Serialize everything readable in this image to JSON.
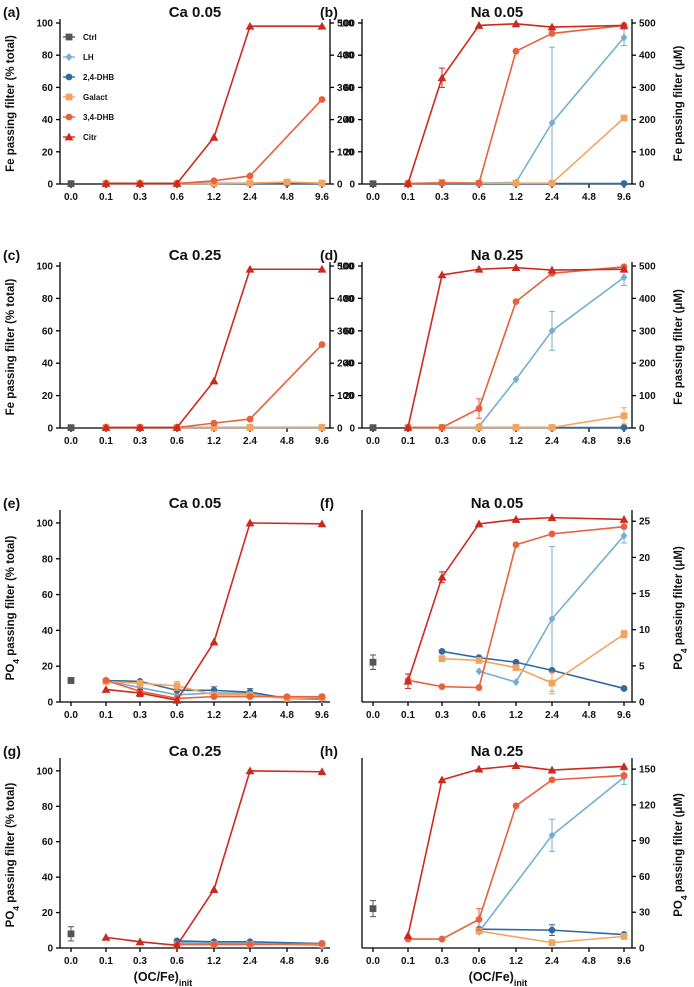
{
  "x_axis": {
    "categories": [
      "0.0",
      "0.1",
      "0.3",
      "0.6",
      "1.2",
      "2.4",
      "4.8",
      "9.6"
    ],
    "label_main": "(OC/Fe)",
    "label_sub": "init"
  },
  "y_labels": {
    "fe_left": "Fe passing filter (% total)",
    "fe_right": "Fe passing filter (μM)",
    "po4_left_pre": "PO",
    "po4_left_sub": "4",
    "po4_left_post": " passing filter (% total)",
    "po4_right_pre": "PO",
    "po4_right_sub": "4",
    "po4_right_post": " passing filter (μM)"
  },
  "legend": [
    {
      "name": "Ctrl",
      "color": "#555555",
      "marker": "square"
    },
    {
      "name": "LH",
      "color": "#74afd3",
      "marker": "diamond"
    },
    {
      "name": "2,4-DHB",
      "color": "#2f6aa3",
      "marker": "circle"
    },
    {
      "name": "Galact",
      "color": "#f2a45e",
      "marker": "square"
    },
    {
      "name": "3,4-DHB",
      "color": "#e8603c",
      "marker": "circle"
    },
    {
      "name": "Citr",
      "color": "#cc2a1e",
      "marker": "triangle"
    }
  ],
  "chart_data": [
    {
      "panel": "(a)",
      "title": "Ca 0.05",
      "type": "line",
      "ylim": [
        0,
        100
      ],
      "yticks": [
        0,
        20,
        40,
        60,
        80,
        100
      ],
      "right_ylim": [
        0,
        500
      ],
      "right_yticks": [
        0,
        100,
        200,
        300,
        400,
        500
      ],
      "series": [
        {
          "name": "Ctrl",
          "values": [
            0.2,
            null,
            null,
            null,
            null,
            null,
            null,
            null
          ],
          "errors": []
        },
        {
          "name": "LH",
          "values": [
            null,
            0.5,
            0.5,
            0.5,
            0.5,
            0.5,
            0.5,
            0.5
          ],
          "errors": []
        },
        {
          "name": "2,4-DHB",
          "values": [
            null,
            0.3,
            0.3,
            0.3,
            0.3,
            0.3,
            0.3,
            0.3
          ],
          "errors": []
        },
        {
          "name": "Galact",
          "values": [
            null,
            0.3,
            0.3,
            0.3,
            0.3,
            0.5,
            1.2,
            0.5
          ],
          "errors": []
        },
        {
          "name": "3,4-DHB",
          "values": [
            null,
            0.3,
            0.3,
            0.3,
            2,
            5,
            null,
            52.5
          ],
          "errors": []
        },
        {
          "name": "Citr",
          "values": [
            null,
            0.3,
            0.3,
            0.3,
            29,
            98,
            null,
            98
          ],
          "errors": []
        }
      ]
    },
    {
      "panel": "(b)",
      "title": "Na 0.05",
      "type": "line",
      "ylim": [
        0,
        100
      ],
      "yticks": [
        0,
        20,
        40,
        60,
        80,
        100
      ],
      "right_ylim": [
        0,
        500
      ],
      "right_yticks": [
        0,
        100,
        200,
        300,
        400,
        500
      ],
      "series": [
        {
          "name": "Ctrl",
          "values": [
            0.2,
            null,
            null,
            null,
            null,
            null,
            null,
            null
          ],
          "errors": []
        },
        {
          "name": "LH",
          "values": [
            null,
            null,
            null,
            0.5,
            1,
            38,
            null,
            91
          ],
          "errors": [
            null,
            null,
            null,
            null,
            null,
            47,
            null,
            5
          ]
        },
        {
          "name": "2,4-DHB",
          "values": [
            null,
            0.3,
            0.3,
            0.3,
            0.3,
            0.3,
            null,
            0.3
          ],
          "errors": []
        },
        {
          "name": "Galact",
          "values": [
            null,
            0.3,
            1,
            0.5,
            0.5,
            0.5,
            null,
            41
          ],
          "errors": []
        },
        {
          "name": "3,4-DHB",
          "values": [
            null,
            0.3,
            0.5,
            0.5,
            82.5,
            93.5,
            null,
            98.5
          ],
          "errors": []
        },
        {
          "name": "Citr",
          "values": [
            null,
            0.3,
            66,
            98.5,
            99.5,
            97.5,
            null,
            98.5
          ],
          "errors": [
            null,
            null,
            6,
            null,
            null,
            null,
            null,
            null
          ]
        }
      ]
    },
    {
      "panel": "(c)",
      "title": "Ca 0.25",
      "type": "line",
      "ylim": [
        0,
        100
      ],
      "yticks": [
        0,
        20,
        40,
        60,
        80,
        100
      ],
      "right_ylim": [
        0,
        500
      ],
      "right_yticks": [
        0,
        100,
        200,
        300,
        400,
        500
      ],
      "series": [
        {
          "name": "Ctrl",
          "values": [
            0.2,
            null,
            null,
            null,
            null,
            null,
            null,
            null
          ],
          "errors": []
        },
        {
          "name": "LH",
          "values": [
            null,
            0.3,
            0.3,
            0.3,
            0.3,
            0.3,
            null,
            0.3
          ],
          "errors": []
        },
        {
          "name": "2,4-DHB",
          "values": [
            null,
            0.3,
            0.3,
            0.3,
            0.3,
            0.3,
            null,
            0.3
          ],
          "errors": []
        },
        {
          "name": "Galact",
          "values": [
            null,
            0.3,
            0.3,
            0.3,
            0.3,
            0.3,
            null,
            0.3
          ],
          "errors": []
        },
        {
          "name": "3,4-DHB",
          "values": [
            null,
            0.3,
            0.3,
            0.3,
            3,
            5.5,
            null,
            51.5
          ],
          "errors": []
        },
        {
          "name": "Citr",
          "values": [
            null,
            0.3,
            0.3,
            0.3,
            29,
            98,
            null,
            98
          ],
          "errors": []
        }
      ]
    },
    {
      "panel": "(d)",
      "title": "Na 0.25",
      "type": "line",
      "ylim": [
        0,
        100
      ],
      "yticks": [
        0,
        20,
        40,
        60,
        80,
        100
      ],
      "right_ylim": [
        0,
        500
      ],
      "right_yticks": [
        0,
        100,
        200,
        300,
        400,
        500
      ],
      "series": [
        {
          "name": "Ctrl",
          "values": [
            0.2,
            null,
            null,
            null,
            null,
            null,
            null,
            null
          ],
          "errors": []
        },
        {
          "name": "LH",
          "values": [
            null,
            null,
            null,
            1,
            30,
            60,
            null,
            93
          ],
          "errors": [
            null,
            null,
            null,
            null,
            null,
            12,
            null,
            5
          ]
        },
        {
          "name": "2,4-DHB",
          "values": [
            null,
            0.3,
            0.3,
            0.3,
            0.3,
            0.3,
            null,
            0.3
          ],
          "errors": []
        },
        {
          "name": "Galact",
          "values": [
            null,
            0.3,
            0.3,
            0.3,
            0.3,
            0.3,
            null,
            7.5
          ],
          "errors": [
            null,
            null,
            null,
            null,
            null,
            null,
            null,
            5
          ]
        },
        {
          "name": "3,4-DHB",
          "values": [
            null,
            0.3,
            0.3,
            12,
            78,
            95.5,
            null,
            99.5
          ],
          "errors": [
            null,
            null,
            null,
            6,
            null,
            null,
            null,
            null
          ]
        },
        {
          "name": "Citr",
          "values": [
            null,
            0.3,
            94.5,
            98,
            99,
            97.5,
            null,
            98
          ],
          "errors": []
        }
      ]
    },
    {
      "panel": "(e)",
      "title": "Ca 0.05",
      "type": "line",
      "ylim": [
        0,
        105
      ],
      "yticks": [
        0,
        20,
        40,
        60,
        80,
        100
      ],
      "right_ylim": null,
      "right_yticks": [],
      "series": [
        {
          "name": "Ctrl",
          "values": [
            12,
            null,
            null,
            null,
            null,
            null,
            null,
            null
          ],
          "errors": [
            1.5,
            null,
            null,
            null,
            null,
            null,
            null,
            null
          ]
        },
        {
          "name": "LH",
          "values": [
            null,
            12,
            8,
            4,
            5,
            5,
            2,
            1.5
          ],
          "errors": []
        },
        {
          "name": "2,4-DHB",
          "values": [
            null,
            12,
            11.5,
            6.5,
            6.5,
            5.5,
            2,
            2
          ],
          "errors": [
            null,
            null,
            null,
            null,
            2,
            2,
            null,
            null
          ]
        },
        {
          "name": "Galact",
          "values": [
            null,
            11.5,
            10.5,
            9,
            4,
            4,
            2,
            2.5
          ],
          "errors": [
            null,
            null,
            null,
            2.5,
            null,
            null,
            null,
            null
          ]
        },
        {
          "name": "3,4-DHB",
          "values": [
            null,
            12,
            6,
            2,
            3,
            3,
            3,
            3
          ],
          "errors": []
        },
        {
          "name": "Citr",
          "values": [
            null,
            7,
            5,
            1,
            33.5,
            100,
            null,
            99.5
          ],
          "errors": [
            null,
            null,
            2,
            null,
            null,
            null,
            null,
            null
          ]
        }
      ]
    },
    {
      "panel": "(f)",
      "title": "Na 0.05",
      "type": "line",
      "ylim": [
        0,
        104
      ],
      "yticks": [],
      "right_ylim": [
        0,
        26
      ],
      "right_yticks": [
        0,
        5,
        10,
        15,
        20,
        25
      ],
      "series": [
        {
          "name": "Ctrl",
          "values": [
            22,
            null,
            null,
            null,
            null,
            null,
            null,
            null
          ],
          "errors": [
            4,
            null,
            null,
            null,
            null,
            null,
            null,
            null
          ]
        },
        {
          "name": "LH",
          "values": [
            null,
            null,
            null,
            17,
            11,
            46,
            null,
            92
          ],
          "errors": [
            null,
            null,
            null,
            null,
            null,
            40,
            null,
            4
          ]
        },
        {
          "name": "2,4-DHB",
          "values": [
            null,
            null,
            28,
            24.5,
            22,
            17.5,
            null,
            7.5
          ],
          "errors": []
        },
        {
          "name": "Galact",
          "values": [
            null,
            null,
            24,
            23,
            19,
            10.5,
            null,
            37.5
          ],
          "errors": [
            null,
            null,
            null,
            null,
            null,
            6,
            null,
            2
          ]
        },
        {
          "name": "3,4-DHB",
          "values": [
            null,
            12,
            8.5,
            8,
            87,
            93,
            null,
            97
          ],
          "errors": []
        },
        {
          "name": "Citr",
          "values": [
            null,
            11.5,
            69,
            98.5,
            101,
            102,
            null,
            101
          ],
          "errors": [
            null,
            4,
            3,
            null,
            null,
            null,
            null,
            null
          ]
        }
      ]
    },
    {
      "panel": "(g)",
      "title": "Ca 0.25",
      "type": "line",
      "ylim": [
        0,
        105
      ],
      "yticks": [
        0,
        20,
        40,
        60,
        80,
        100
      ],
      "right_ylim": null,
      "right_yticks": [],
      "series": [
        {
          "name": "Ctrl",
          "values": [
            8,
            null,
            null,
            null,
            null,
            null,
            null,
            null
          ],
          "errors": [
            4,
            null,
            null,
            null,
            null,
            null,
            null,
            null
          ]
        },
        {
          "name": "LH",
          "values": [
            null,
            null,
            null,
            3,
            2.5,
            2.5,
            null,
            1.5
          ],
          "errors": []
        },
        {
          "name": "2,4-DHB",
          "values": [
            null,
            null,
            null,
            4,
            3.5,
            3.5,
            null,
            2.5
          ],
          "errors": []
        },
        {
          "name": "Galact",
          "values": [
            null,
            null,
            null,
            2,
            2,
            2,
            null,
            2
          ],
          "errors": []
        },
        {
          "name": "3,4-DHB",
          "values": [
            null,
            null,
            null,
            2,
            2,
            2,
            null,
            2.5
          ],
          "errors": []
        },
        {
          "name": "Citr",
          "values": [
            null,
            6,
            3.5,
            1.5,
            33,
            100,
            null,
            99.5
          ],
          "errors": []
        }
      ]
    },
    {
      "panel": "(h)",
      "title": "Na 0.25",
      "type": "line",
      "ylim": [
        0,
        104
      ],
      "yticks": [],
      "right_ylim": [
        0,
        156
      ],
      "right_yticks": [
        0,
        30,
        60,
        90,
        120,
        150
      ],
      "series": [
        {
          "name": "Ctrl",
          "values": [
            22,
            null,
            null,
            null,
            null,
            null,
            null,
            null
          ],
          "errors": [
            4.5,
            null,
            null,
            null,
            null,
            null,
            null,
            null
          ]
        },
        {
          "name": "LH",
          "values": [
            null,
            null,
            null,
            9,
            null,
            63,
            null,
            95.5
          ],
          "errors": [
            null,
            null,
            null,
            null,
            null,
            9,
            null,
            4
          ]
        },
        {
          "name": "2,4-DHB",
          "values": [
            null,
            null,
            null,
            10.5,
            null,
            10,
            null,
            7.5
          ],
          "errors": [
            null,
            null,
            null,
            null,
            null,
            3,
            null,
            null
          ]
        },
        {
          "name": "Galact",
          "values": [
            null,
            null,
            null,
            9.5,
            null,
            3,
            null,
            6.5
          ],
          "errors": []
        },
        {
          "name": "3,4-DHB",
          "values": [
            null,
            5,
            5,
            16,
            79.5,
            94,
            null,
            96.5
          ],
          "errors": [
            null,
            null,
            null,
            6,
            null,
            null,
            null,
            null
          ]
        },
        {
          "name": "Citr",
          "values": [
            null,
            7,
            94,
            100,
            102,
            99.5,
            null,
            101.5
          ],
          "errors": []
        }
      ]
    }
  ]
}
